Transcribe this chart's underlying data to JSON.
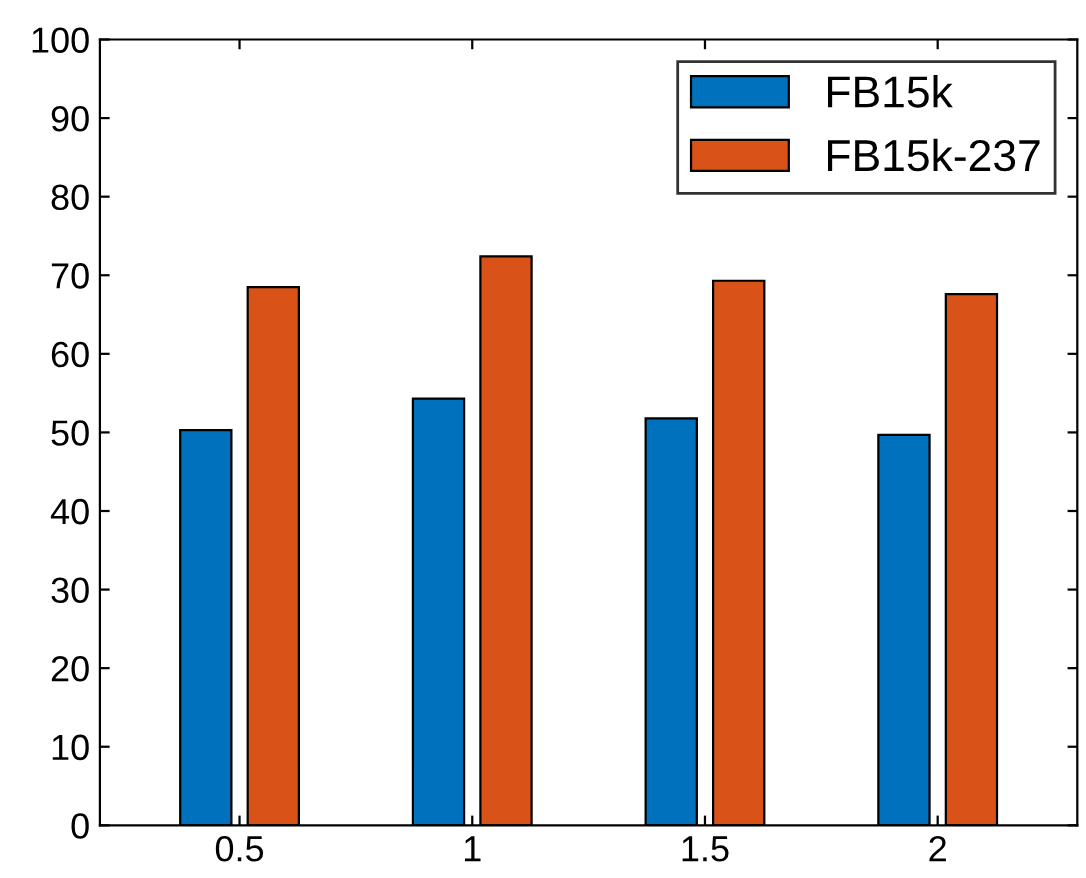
{
  "chart_data": {
    "type": "bar",
    "categories": [
      "0.5",
      "1",
      "1.5",
      "2"
    ],
    "series": [
      {
        "name": "FB15k",
        "color": "#0072bd",
        "values": [
          50.3,
          54.3,
          51.8,
          49.7
        ]
      },
      {
        "name": "FB15k-237",
        "color": "#d95319",
        "values": [
          68.5,
          72.4,
          69.3,
          67.6
        ]
      }
    ],
    "ylim": [
      0,
      100
    ],
    "yticks": [
      0,
      10,
      20,
      30,
      40,
      50,
      60,
      70,
      80,
      90,
      100
    ],
    "grid": false,
    "legend": "top right"
  }
}
